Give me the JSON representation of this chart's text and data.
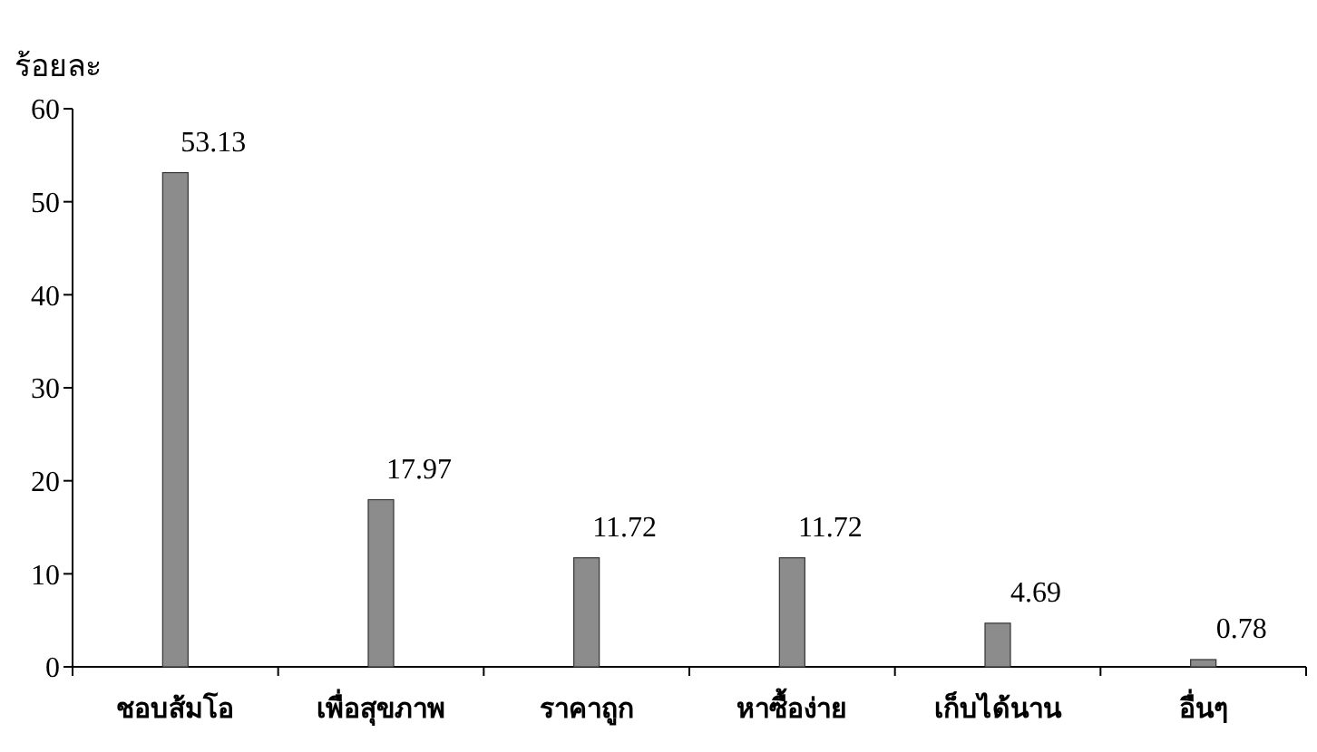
{
  "chart_data": {
    "type": "bar",
    "ylabel": "ร้อยละ",
    "categories": [
      "ชอบส้มโอ",
      "เพื่อสุขภาพ",
      "ราคาถูก",
      "หาซื้อง่าย",
      "เก็บได้นาน",
      "อื่นๆ"
    ],
    "values": [
      53.13,
      17.97,
      11.72,
      11.72,
      4.69,
      0.78
    ],
    "color": "#8c8c8c",
    "ylim": [
      0,
      60
    ],
    "yticks": [
      0,
      10,
      20,
      30,
      40,
      50,
      60
    ],
    "data_labels": true
  }
}
